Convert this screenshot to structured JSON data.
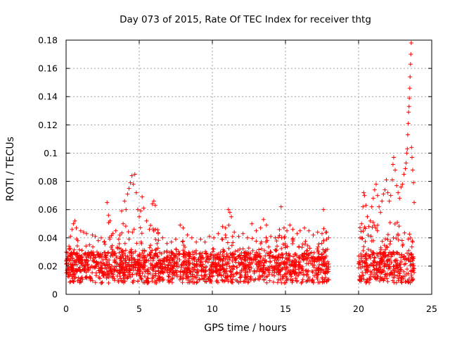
{
  "chart_data": {
    "type": "scatter",
    "title": "Day 073 of 2015, Rate Of TEC Index for receiver thtg",
    "xlabel": "GPS time / hours",
    "ylabel": "ROTI / TECUs",
    "xlim": [
      0,
      25
    ],
    "ylim": [
      0,
      0.18
    ],
    "xticks": [
      0,
      5,
      10,
      15,
      20,
      25
    ],
    "xtick_labels": [
      "0",
      "5",
      "10",
      "15",
      "20",
      "25"
    ],
    "yticks": [
      0,
      0.02,
      0.04,
      0.06,
      0.08,
      0.1,
      0.12,
      0.14,
      0.16,
      0.18
    ],
    "ytick_labels": [
      "0",
      "0.02",
      "0.04",
      "0.06",
      "0.08",
      "0.1",
      "0.12",
      "0.14",
      "0.16",
      "0.18"
    ],
    "grid": true,
    "marker": "+",
    "color": "#ff0000",
    "series": [
      {
        "name": "ROTI",
        "points": [
          [
            0.1,
            0.018
          ],
          [
            0.2,
            0.034
          ],
          [
            0.3,
            0.041
          ],
          [
            0.4,
            0.046
          ],
          [
            0.5,
            0.05
          ],
          [
            0.6,
            0.052
          ],
          [
            0.7,
            0.047
          ],
          [
            0.8,
            0.038
          ],
          [
            1.0,
            0.045
          ],
          [
            1.2,
            0.044
          ],
          [
            1.4,
            0.043
          ],
          [
            1.6,
            0.035
          ],
          [
            1.8,
            0.042
          ],
          [
            2.0,
            0.041
          ],
          [
            2.2,
            0.038
          ],
          [
            2.4,
            0.04
          ],
          [
            2.6,
            0.037
          ],
          [
            2.8,
            0.065
          ],
          [
            2.9,
            0.056
          ],
          [
            3.0,
            0.052
          ],
          [
            3.2,
            0.043
          ],
          [
            3.4,
            0.045
          ],
          [
            3.6,
            0.039
          ],
          [
            3.8,
            0.059
          ],
          [
            3.9,
            0.05
          ],
          [
            4.0,
            0.066
          ],
          [
            4.1,
            0.06
          ],
          [
            4.2,
            0.071
          ],
          [
            4.3,
            0.075
          ],
          [
            4.4,
            0.079
          ],
          [
            4.5,
            0.084
          ],
          [
            4.6,
            0.078
          ],
          [
            4.7,
            0.085
          ],
          [
            4.8,
            0.072
          ],
          [
            4.9,
            0.06
          ],
          [
            5.0,
            0.055
          ],
          [
            5.1,
            0.059
          ],
          [
            5.2,
            0.069
          ],
          [
            5.3,
            0.061
          ],
          [
            5.5,
            0.052
          ],
          [
            5.7,
            0.046
          ],
          [
            5.9,
            0.064
          ],
          [
            6.0,
            0.066
          ],
          [
            6.1,
            0.063
          ],
          [
            6.3,
            0.043
          ],
          [
            6.6,
            0.04
          ],
          [
            6.9,
            0.036
          ],
          [
            7.2,
            0.037
          ],
          [
            7.5,
            0.039
          ],
          [
            7.8,
            0.049
          ],
          [
            8.0,
            0.047
          ],
          [
            8.3,
            0.042
          ],
          [
            8.6,
            0.04
          ],
          [
            8.9,
            0.037
          ],
          [
            9.2,
            0.039
          ],
          [
            9.5,
            0.037
          ],
          [
            9.8,
            0.041
          ],
          [
            10.1,
            0.04
          ],
          [
            10.4,
            0.043
          ],
          [
            10.7,
            0.048
          ],
          [
            10.9,
            0.047
          ],
          [
            11.1,
            0.06
          ],
          [
            11.2,
            0.058
          ],
          [
            11.3,
            0.055
          ],
          [
            11.5,
            0.044
          ],
          [
            11.8,
            0.041
          ],
          [
            12.1,
            0.043
          ],
          [
            12.4,
            0.04
          ],
          [
            12.7,
            0.05
          ],
          [
            13.0,
            0.045
          ],
          [
            13.3,
            0.047
          ],
          [
            13.5,
            0.053
          ],
          [
            13.7,
            0.049
          ],
          [
            14.0,
            0.041
          ],
          [
            14.3,
            0.04
          ],
          [
            14.7,
            0.062
          ],
          [
            14.9,
            0.047
          ],
          [
            15.1,
            0.045
          ],
          [
            15.3,
            0.049
          ],
          [
            15.5,
            0.046
          ],
          [
            15.8,
            0.043
          ],
          [
            16.0,
            0.045
          ],
          [
            16.3,
            0.047
          ],
          [
            16.6,
            0.045
          ],
          [
            16.9,
            0.042
          ],
          [
            17.2,
            0.044
          ],
          [
            17.5,
            0.043
          ],
          [
            17.6,
            0.06
          ],
          [
            17.8,
            0.044
          ],
          [
            17.95,
            0.04
          ],
          [
            20.1,
            0.04
          ],
          [
            20.2,
            0.05
          ],
          [
            20.3,
            0.062
          ],
          [
            20.35,
            0.072
          ],
          [
            20.4,
            0.07
          ],
          [
            20.5,
            0.063
          ],
          [
            20.6,
            0.055
          ],
          [
            20.7,
            0.048
          ],
          [
            20.8,
            0.052
          ],
          [
            20.9,
            0.062
          ],
          [
            21.0,
            0.068
          ],
          [
            21.1,
            0.074
          ],
          [
            21.2,
            0.078
          ],
          [
            21.3,
            0.07
          ],
          [
            21.4,
            0.062
          ],
          [
            21.5,
            0.058
          ],
          [
            21.6,
            0.066
          ],
          [
            21.7,
            0.071
          ],
          [
            21.8,
            0.074
          ],
          [
            21.9,
            0.081
          ],
          [
            22.0,
            0.072
          ],
          [
            22.1,
            0.066
          ],
          [
            22.2,
            0.07
          ],
          [
            22.3,
            0.081
          ],
          [
            22.35,
            0.092
          ],
          [
            22.4,
            0.097
          ],
          [
            22.5,
            0.088
          ],
          [
            22.6,
            0.077
          ],
          [
            22.7,
            0.072
          ],
          [
            22.8,
            0.068
          ],
          [
            22.9,
            0.076
          ],
          [
            23.0,
            0.078
          ],
          [
            23.1,
            0.085
          ],
          [
            23.2,
            0.089
          ],
          [
            23.25,
            0.093
          ],
          [
            23.3,
            0.1
          ],
          [
            23.33,
            0.103
          ],
          [
            23.36,
            0.113
          ],
          [
            23.4,
            0.121
          ],
          [
            23.42,
            0.129
          ],
          [
            23.45,
            0.133
          ],
          [
            23.47,
            0.139
          ],
          [
            23.5,
            0.146
          ],
          [
            23.52,
            0.154
          ],
          [
            23.55,
            0.163
          ],
          [
            23.57,
            0.17
          ],
          [
            23.6,
            0.178
          ],
          [
            23.62,
            0.104
          ],
          [
            23.65,
            0.097
          ],
          [
            23.7,
            0.088
          ],
          [
            23.75,
            0.079
          ],
          [
            23.8,
            0.065
          ]
        ]
      }
    ]
  }
}
